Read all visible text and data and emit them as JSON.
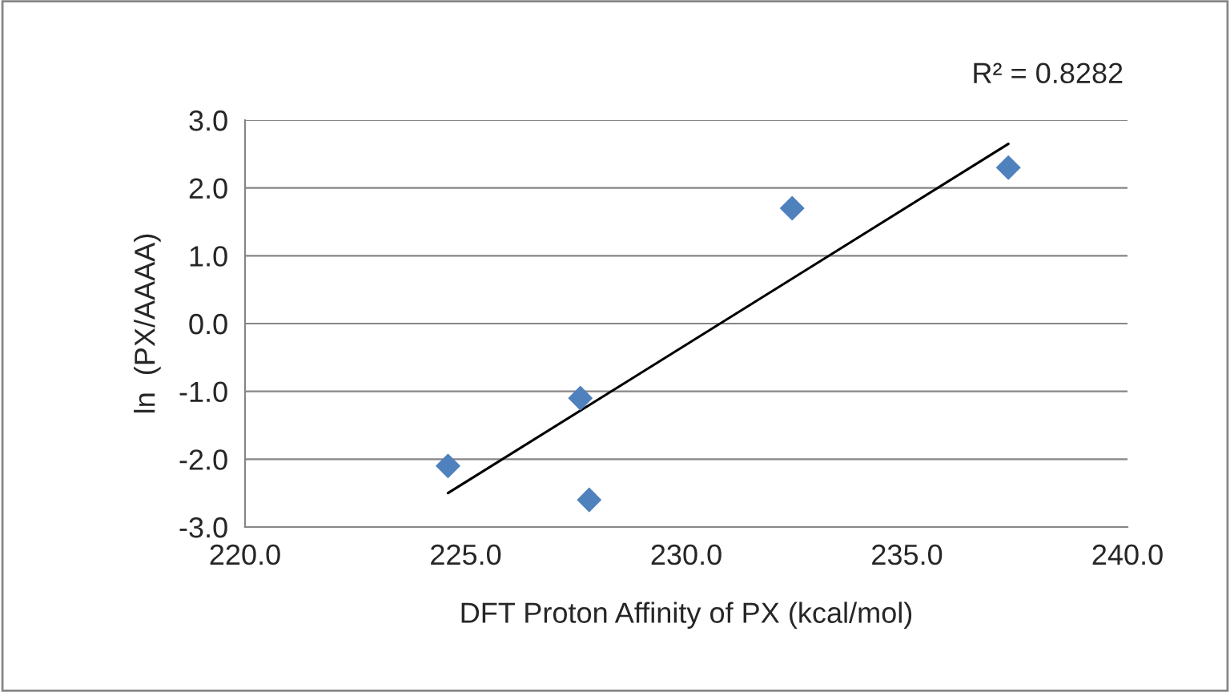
{
  "chart_data": {
    "type": "scatter",
    "xlabel": "DFT Proton Affinity of PX (kcal/mol)",
    "ylabel": "ln  (PX/AAAA)",
    "annotations": [
      "R² = 0.8282"
    ],
    "series": [
      {
        "color": "#4f81bd",
        "marker": "diamond",
        "x": [
          224.6,
          227.6,
          227.8,
          232.4,
          237.3
        ],
        "values": [
          -2.1,
          -1.1,
          -2.6,
          1.7,
          2.3
        ]
      },
      {
        "type": "line",
        "color": "#000000",
        "line_style": "solid",
        "x": [
          224.6,
          237.3
        ],
        "values": [
          -2.5,
          2.65
        ]
      }
    ],
    "xlim": [
      220,
      240
    ],
    "ylim": [
      -3,
      3
    ],
    "xticks": [
      {
        "value": 220,
        "label": "220.0"
      },
      {
        "value": 225,
        "label": "225.0"
      },
      {
        "value": 230,
        "label": "230.0"
      },
      {
        "value": 235,
        "label": "235.0"
      },
      {
        "value": 240,
        "label": "240.0"
      }
    ],
    "yticks": [
      {
        "value": -3,
        "label": "-3.0"
      },
      {
        "value": -2,
        "label": "-2.0"
      },
      {
        "value": -1,
        "label": "-1.0"
      },
      {
        "value": 0,
        "label": "0.0"
      },
      {
        "value": 1,
        "label": "1.0"
      },
      {
        "value": 2,
        "label": "2.0"
      },
      {
        "value": 3,
        "label": "3.0"
      }
    ],
    "grid": "y",
    "legend": false
  }
}
